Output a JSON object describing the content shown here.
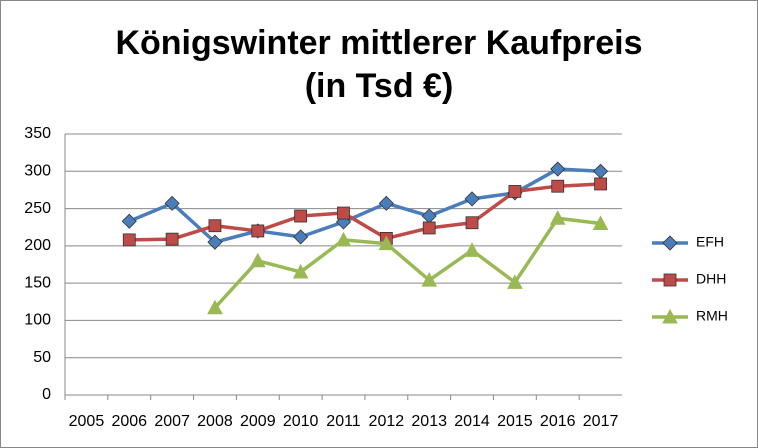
{
  "chart_data": {
    "type": "line",
    "title": [
      "Königswinter  mittlerer Kaufpreis",
      "(in Tsd €)"
    ],
    "categories": [
      "2005",
      "2006",
      "2007",
      "2008",
      "2009",
      "2010",
      "2011",
      "2012",
      "2013",
      "2014",
      "2015",
      "2016",
      "2017"
    ],
    "series": [
      {
        "name": "EFH",
        "color": "#4a7ebb",
        "marker": "diamond",
        "values": [
          null,
          233,
          257,
          205,
          220,
          212,
          232,
          257,
          240,
          263,
          271,
          303,
          300
        ]
      },
      {
        "name": "DHH",
        "color": "#be4b48",
        "marker": "square",
        "values": [
          null,
          208,
          209,
          227,
          220,
          240,
          244,
          210,
          224,
          231,
          273,
          280,
          283
        ]
      },
      {
        "name": "RMH",
        "color": "#98b954",
        "marker": "triangle",
        "values": [
          null,
          null,
          null,
          117,
          180,
          165,
          208,
          203,
          154,
          194,
          151,
          237,
          230
        ]
      }
    ],
    "ylim": [
      0,
      350
    ],
    "yticks": [
      0,
      50,
      100,
      150,
      200,
      250,
      300,
      350
    ],
    "grid": true,
    "legend": "right"
  }
}
